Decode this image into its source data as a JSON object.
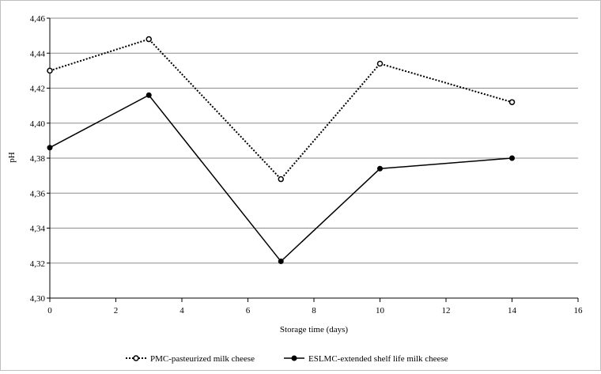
{
  "chart_data": {
    "type": "line",
    "title": "",
    "xlabel": "Storage time (days)",
    "ylabel": "pH",
    "xlim": [
      0,
      16
    ],
    "ylim": [
      4.3,
      4.46
    ],
    "x_ticks": [
      "0",
      "2",
      "4",
      "6",
      "8",
      "10",
      "12",
      "14",
      "16"
    ],
    "y_ticks": [
      "4,30",
      "4,32",
      "4,34",
      "4,36",
      "4,38",
      "4,40",
      "4,42",
      "4,44",
      "4,46"
    ],
    "grid": "horizontal",
    "legend_position": "bottom",
    "series": [
      {
        "name": "PMC-pasteurized milk cheese",
        "style": "dotted",
        "marker": "open-circle",
        "color": "#000000",
        "x": [
          0,
          3,
          7,
          10,
          14
        ],
        "y": [
          4.43,
          4.448,
          4.368,
          4.434,
          4.412
        ]
      },
      {
        "name": "ESLMC-extended shelf life milk cheese",
        "style": "solid",
        "marker": "filled-circle",
        "color": "#000000",
        "x": [
          0,
          3,
          7,
          10,
          14
        ],
        "y": [
          4.386,
          4.416,
          4.321,
          4.374,
          4.38
        ]
      }
    ]
  }
}
